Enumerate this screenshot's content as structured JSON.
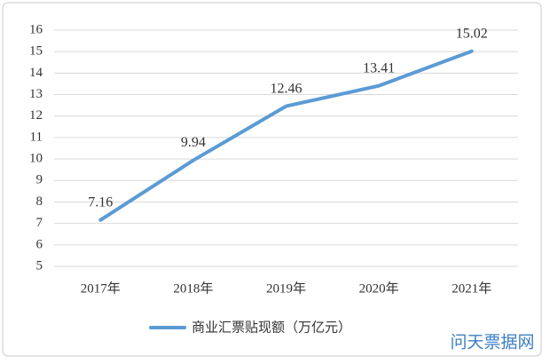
{
  "chart_data": {
    "type": "line",
    "categories": [
      "2017年",
      "2018年",
      "2019年",
      "2020年",
      "2021年"
    ],
    "series": [
      {
        "name": "商业汇票贴现额（万亿元）",
        "color": "#5b9bd5",
        "values": [
          7.16,
          9.94,
          12.46,
          13.41,
          15.02
        ]
      }
    ],
    "ylim": [
      5,
      16
    ],
    "yticks": [
      5,
      6,
      7,
      8,
      9,
      10,
      11,
      12,
      13,
      14,
      15,
      16
    ],
    "grid": true,
    "legend": "bottom",
    "data_labels": true,
    "watermark": "问天票据网"
  }
}
